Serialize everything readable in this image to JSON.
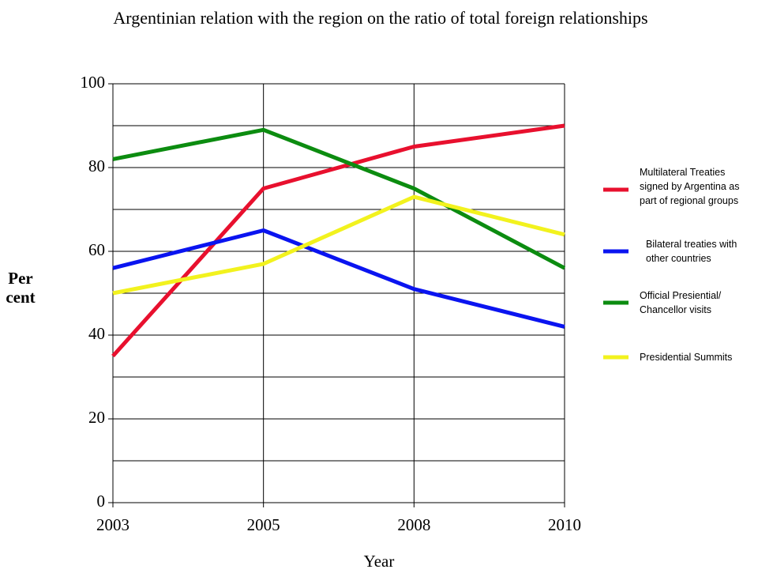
{
  "chart_data": {
    "type": "line",
    "title": "Argentinian relation with the region on the ratio of total foreign relationships",
    "xlabel": "Year",
    "ylabel": "Per cent",
    "categories": [
      "2003",
      "2005",
      "2008",
      "2010"
    ],
    "series": [
      {
        "name": "Multilateral Treaties signed by Argentina as part of regional groups",
        "color": "#e8102e",
        "values": [
          35,
          75,
          85,
          90
        ]
      },
      {
        "name": "Bilateral treaties with other countries",
        "color": "#0a14f0",
        "values": [
          56,
          65,
          51,
          42
        ]
      },
      {
        "name": "Official Presiential/ Chancellor visits",
        "color": "#0c8c10",
        "values": [
          82,
          89,
          75,
          56
        ]
      },
      {
        "name": "Presidential Summits",
        "color": "#f2f21e",
        "values": [
          50,
          57,
          73,
          64
        ]
      }
    ],
    "ylim": [
      0,
      100
    ],
    "yticks": [
      0,
      20,
      40,
      60,
      80,
      100
    ],
    "minor_yticks": [
      10,
      30,
      50,
      70,
      90
    ],
    "grid": true,
    "legend": "right"
  }
}
